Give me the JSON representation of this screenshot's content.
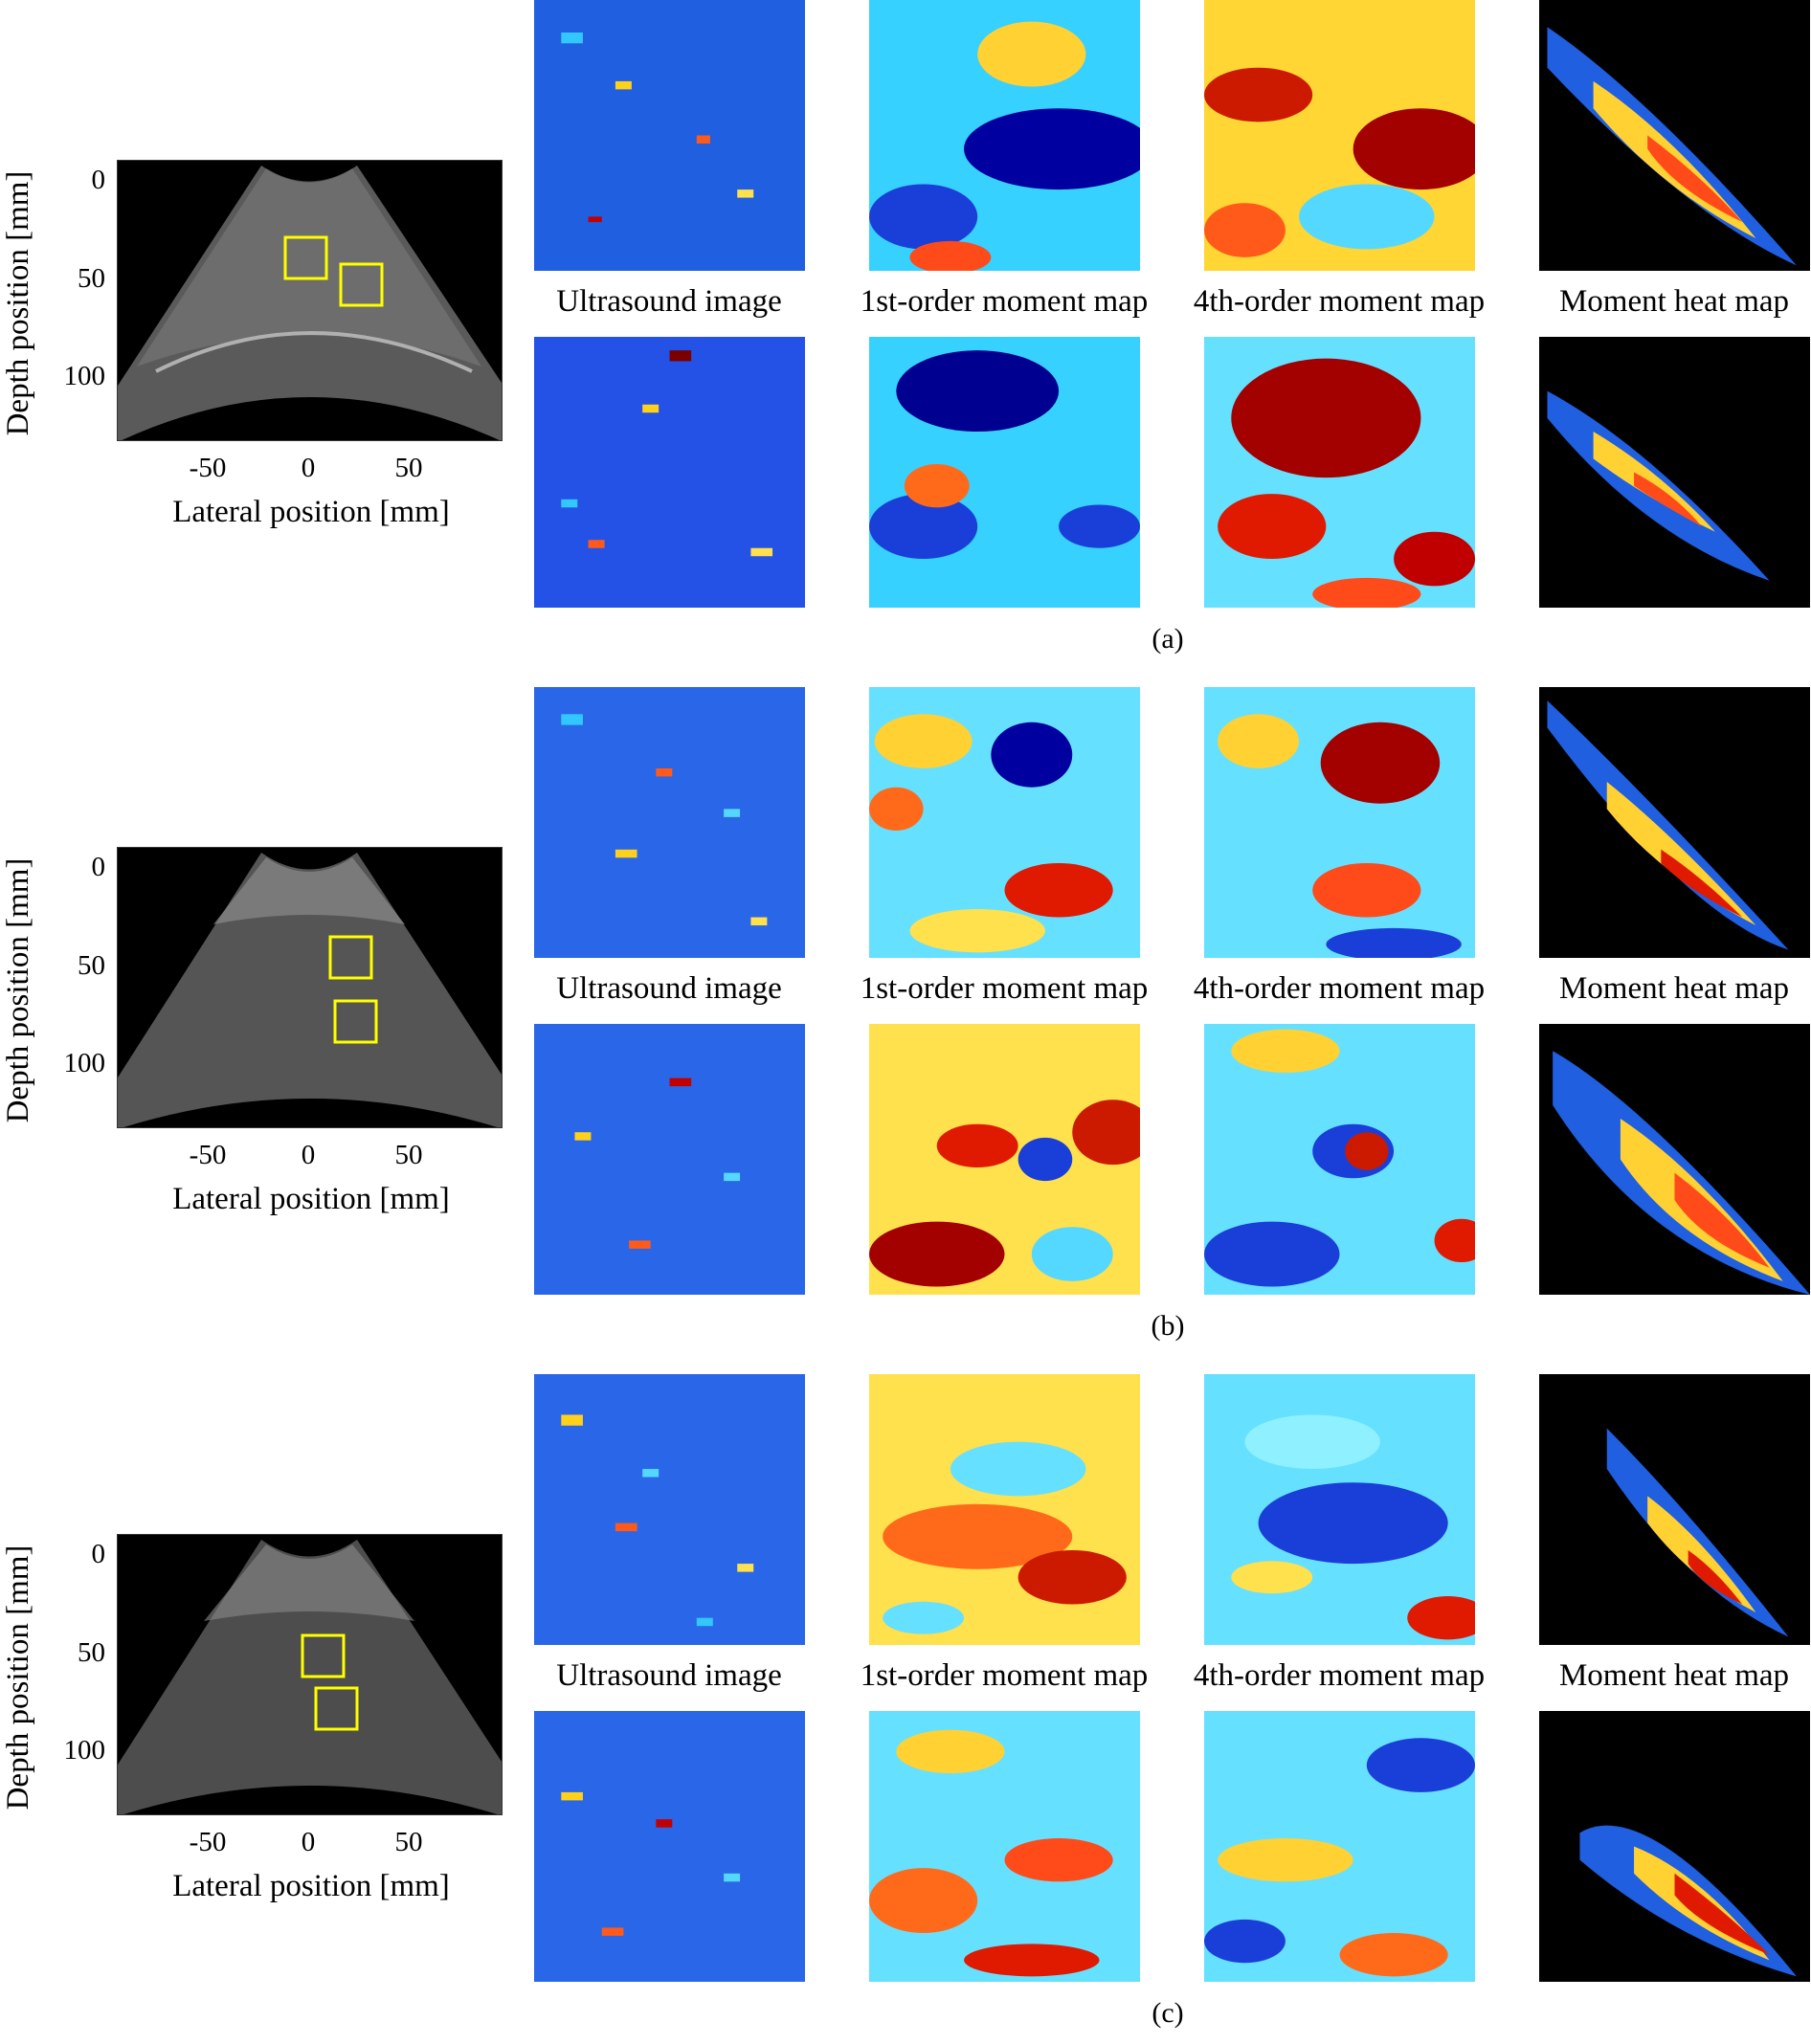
{
  "axes": {
    "ylabel": "Depth position [mm]",
    "xlabel": "Lateral position [mm]",
    "yticks": [
      "0",
      "50",
      "100"
    ],
    "xticks": [
      "-50",
      "0",
      "50"
    ]
  },
  "captions": [
    "Ultrasound image",
    "1st-order moment map",
    "4th-order moment map",
    "Moment heat map"
  ],
  "panels": [
    {
      "label": "(a)"
    },
    {
      "label": "(b)"
    },
    {
      "label": "(c)"
    }
  ],
  "colors": {
    "roi_box": "#ffff00",
    "jet_low": "#00008f",
    "jet_high": "#800000",
    "heat_background": "#000000"
  }
}
